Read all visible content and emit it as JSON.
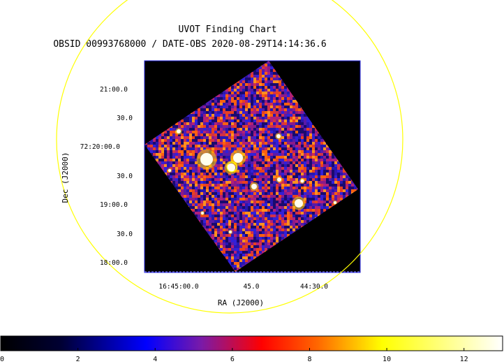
{
  "title": "UVOT Finding Chart",
  "subtitle": "OBSID 00993768000 / DATE-OBS 2020-08-29T14:14:36.6",
  "x_axis": {
    "label": "RA (J2000)",
    "ticks": [
      "16:45:00.0",
      "45.0",
      "44:30.0"
    ]
  },
  "y_axis": {
    "label": "Dec (J2000)",
    "ticks": [
      "21:00.0",
      "30.0",
      "72:20:00.0",
      "30.0",
      "19:00.0",
      "30.0",
      "18:00.0"
    ]
  },
  "colorbar": {
    "range": [
      0,
      13
    ],
    "ticks": [
      "0",
      "2",
      "4",
      "6",
      "8",
      "10",
      "12"
    ],
    "colormap_stops": [
      "#000000",
      "#0000ff",
      "#ff0000",
      "#ffff00",
      "#ffffff"
    ]
  },
  "colors": {
    "circle": "#ffff00",
    "image_border": "#0000ff",
    "background": "#000000"
  }
}
